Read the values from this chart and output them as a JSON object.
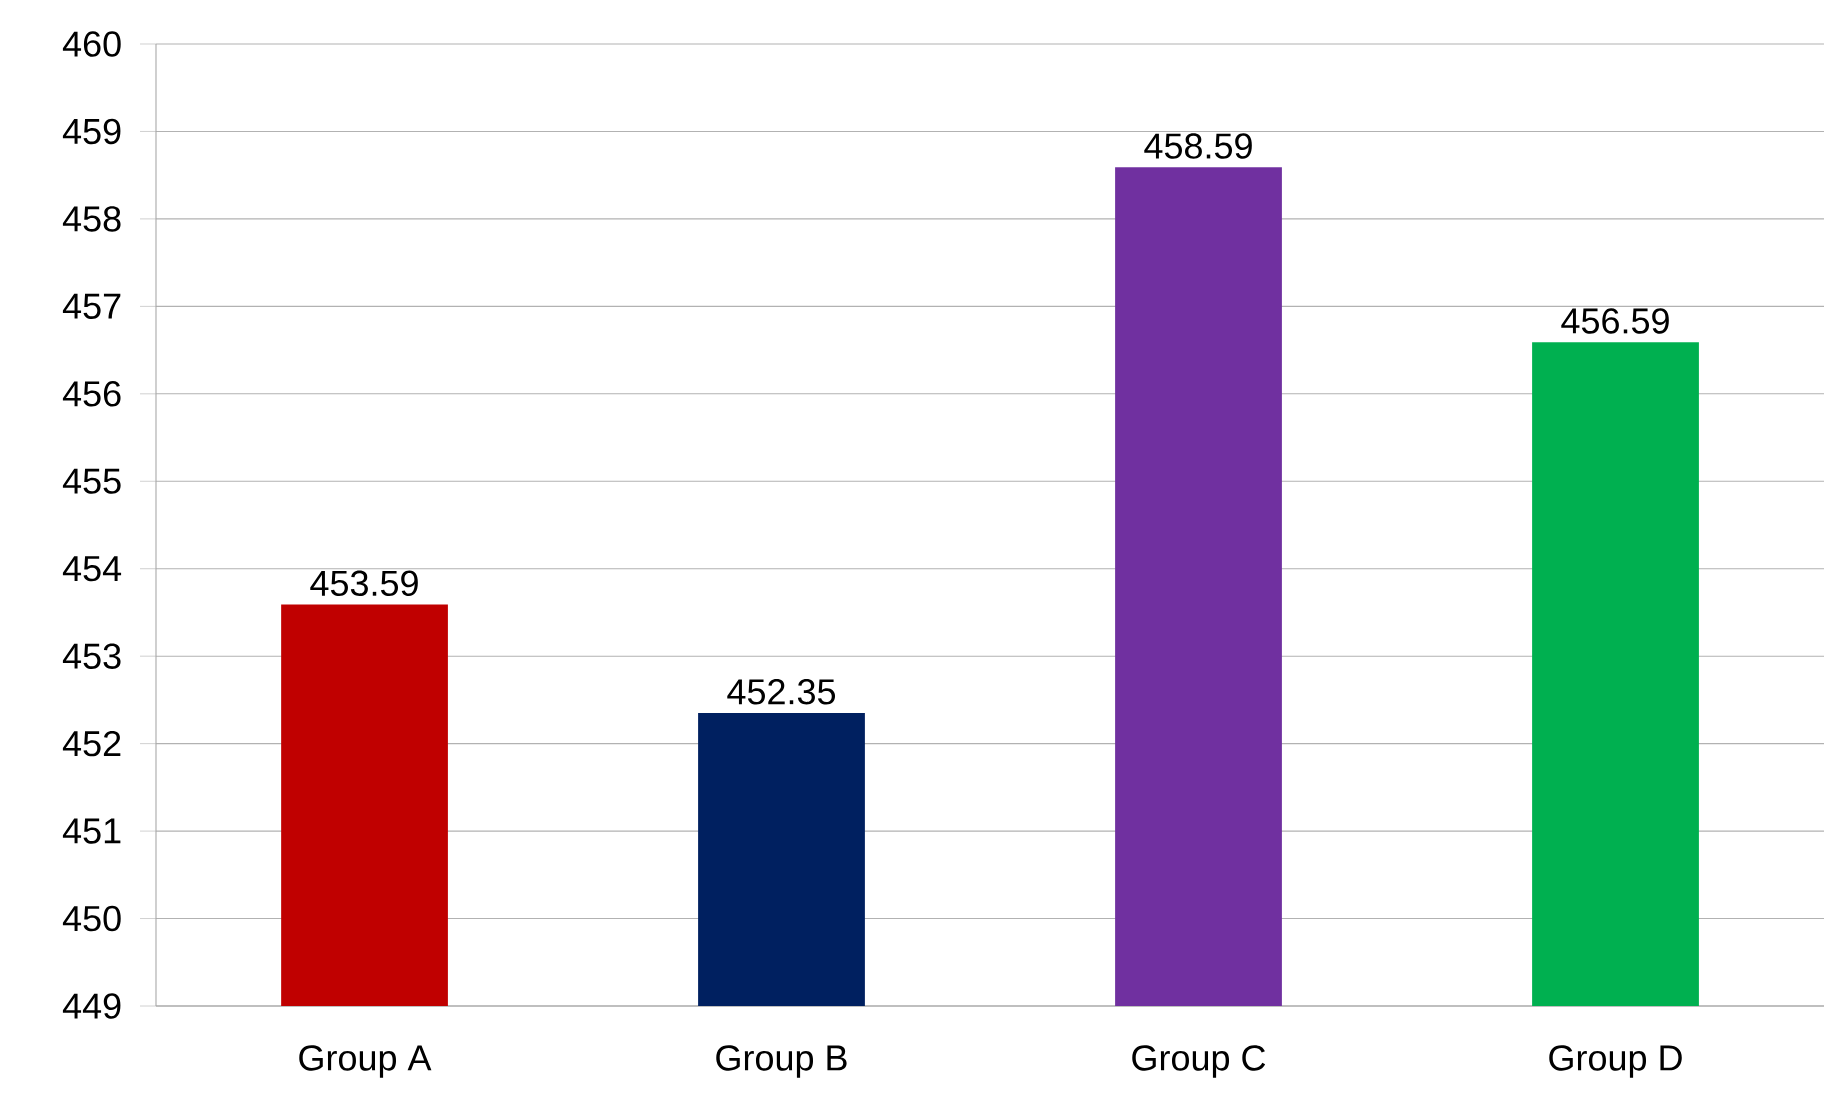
{
  "chart_data": {
    "type": "bar",
    "categories": [
      "Group A",
      "Group B",
      "Group C",
      "Group D"
    ],
    "values": [
      453.59,
      452.35,
      458.59,
      456.59
    ],
    "colors": [
      "#c00000",
      "#002060",
      "#7030a0",
      "#00b050"
    ],
    "ylim": [
      449,
      460
    ],
    "yticks": [
      449,
      450,
      451,
      452,
      453,
      454,
      455,
      456,
      457,
      458,
      459,
      460
    ],
    "grid": "y",
    "data_labels": true
  }
}
